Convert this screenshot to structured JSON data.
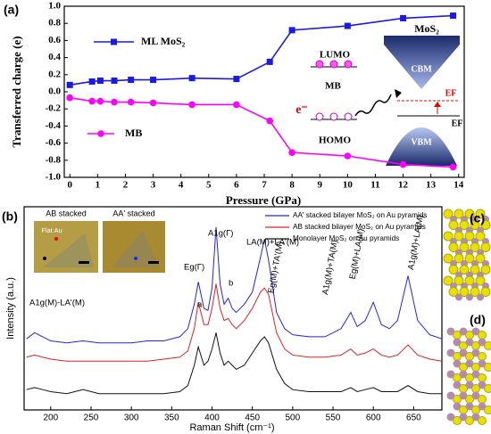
{
  "panel_labels": [
    "(a)",
    "(b)",
    "(c)",
    "(d)"
  ],
  "chart_data": [
    {
      "type": "line",
      "xlabel": "Pressure (GPa)",
      "ylabel": "Transferred charge (e)",
      "x": [
        0,
        0.8,
        1.1,
        1.6,
        2.2,
        3,
        4.4,
        6,
        7.2,
        8,
        10,
        12,
        13.8
      ],
      "series": [
        {
          "name": "ML MoS₂",
          "color": "#1a1ae6",
          "marker": "square",
          "values": [
            0.08,
            0.12,
            0.13,
            0.13,
            0.14,
            0.14,
            0.16,
            0.15,
            0.35,
            0.72,
            0.77,
            0.86,
            0.89
          ]
        },
        {
          "name": "MB",
          "color": "#ff00ff",
          "marker": "circle",
          "values": [
            -0.07,
            -0.11,
            -0.11,
            -0.12,
            -0.12,
            -0.13,
            -0.15,
            -0.15,
            -0.34,
            -0.71,
            -0.75,
            -0.85,
            -0.88
          ]
        }
      ],
      "xlim": [
        -0.2,
        14.2
      ],
      "xticks": [
        0,
        1,
        2,
        3,
        4,
        5,
        6,
        7,
        8,
        9,
        10,
        11,
        12,
        13,
        14
      ],
      "ylim": [
        -1.0,
        1.0
      ],
      "yticks": [
        {
          "value": -1.0,
          "label": "-1.0"
        },
        -0.8,
        -0.6,
        -0.4,
        -0.2,
        {
          "value": 0,
          "label": "0.0"
        },
        0.2,
        0.4,
        0.6,
        0.8,
        {
          "value": 1.0,
          "label": "1.0"
        }
      ],
      "annotations": [
        "MB",
        "MoS₂",
        "LUMO",
        "HOMO",
        "CBM",
        "VBM",
        "EF",
        "EF",
        "e⁻"
      ]
    },
    {
      "type": "line",
      "xlabel": "Raman Shift (cm⁻¹)",
      "ylabel": "Intensity (a.u.)",
      "x": [
        170,
        180,
        190,
        200,
        220,
        240,
        260,
        280,
        300,
        320,
        340,
        360,
        370,
        378,
        383,
        390,
        395,
        400,
        405,
        410,
        415,
        420,
        425,
        430,
        440,
        450,
        460,
        465,
        470,
        480,
        490,
        500,
        520,
        540,
        560,
        572,
        580,
        590,
        600,
        610,
        620,
        630,
        643,
        655,
        670,
        685
      ],
      "series": [
        {
          "name": "AA' stacked bilayer MoS₂ on Au pyramids",
          "color": "#2222ee",
          "values": [
            35,
            38,
            36,
            34,
            33,
            34,
            33,
            33,
            33,
            34,
            34,
            36,
            40,
            52,
            63,
            50,
            49,
            60,
            90,
            62,
            52,
            55,
            50,
            48,
            52,
            58,
            75,
            84,
            74,
            48,
            40,
            37,
            36,
            36,
            40,
            48,
            41,
            44,
            53,
            42,
            40,
            44,
            66,
            44,
            37,
            35
          ]
        },
        {
          "name": "AB stacked  bilayer MoS₂ on Au pyramids",
          "color": "#e02020",
          "values": [
            26,
            27,
            26,
            25,
            24,
            24,
            24,
            24,
            24,
            24,
            25,
            26,
            29,
            40,
            53,
            42,
            42,
            50,
            62,
            50,
            44,
            45,
            42,
            40,
            44,
            50,
            58,
            60,
            57,
            38,
            30,
            27,
            26,
            26,
            27,
            30,
            27,
            28,
            30,
            27,
            26,
            27,
            32,
            27,
            25,
            24
          ]
        },
        {
          "name": "Monolayer MoS₂ on Au pyramids",
          "color": "#111111",
          "values": [
            10,
            11,
            10,
            9,
            8,
            10,
            8,
            8,
            8,
            8,
            8,
            9,
            12,
            22,
            31,
            22,
            24,
            30,
            38,
            28,
            22,
            24,
            22,
            20,
            22,
            28,
            34,
            36,
            33,
            20,
            13,
            10,
            9,
            9,
            9,
            11,
            9,
            10,
            11,
            9,
            9,
            9,
            12,
            9,
            8,
            8
          ]
        }
      ],
      "xlim": [
        167,
        685
      ],
      "xticks": [
        200,
        250,
        300,
        350,
        400,
        450,
        500,
        550,
        600,
        650
      ],
      "ylim": [
        0,
        100
      ],
      "annotations": [
        "A1g(M)-LA'(M)",
        "Eg(Γ)",
        "a",
        "A1g(Γ)",
        "b",
        "LA(M)+LA'(M)",
        "Eg(M)+TA'(M)",
        "A1g(M)+TA(M)",
        "Eg(M)+LA(M)",
        "A1g(M)+LA(M)"
      ],
      "insets": [
        "AB stacked",
        "AA' stacked",
        "Flat Au"
      ]
    }
  ]
}
